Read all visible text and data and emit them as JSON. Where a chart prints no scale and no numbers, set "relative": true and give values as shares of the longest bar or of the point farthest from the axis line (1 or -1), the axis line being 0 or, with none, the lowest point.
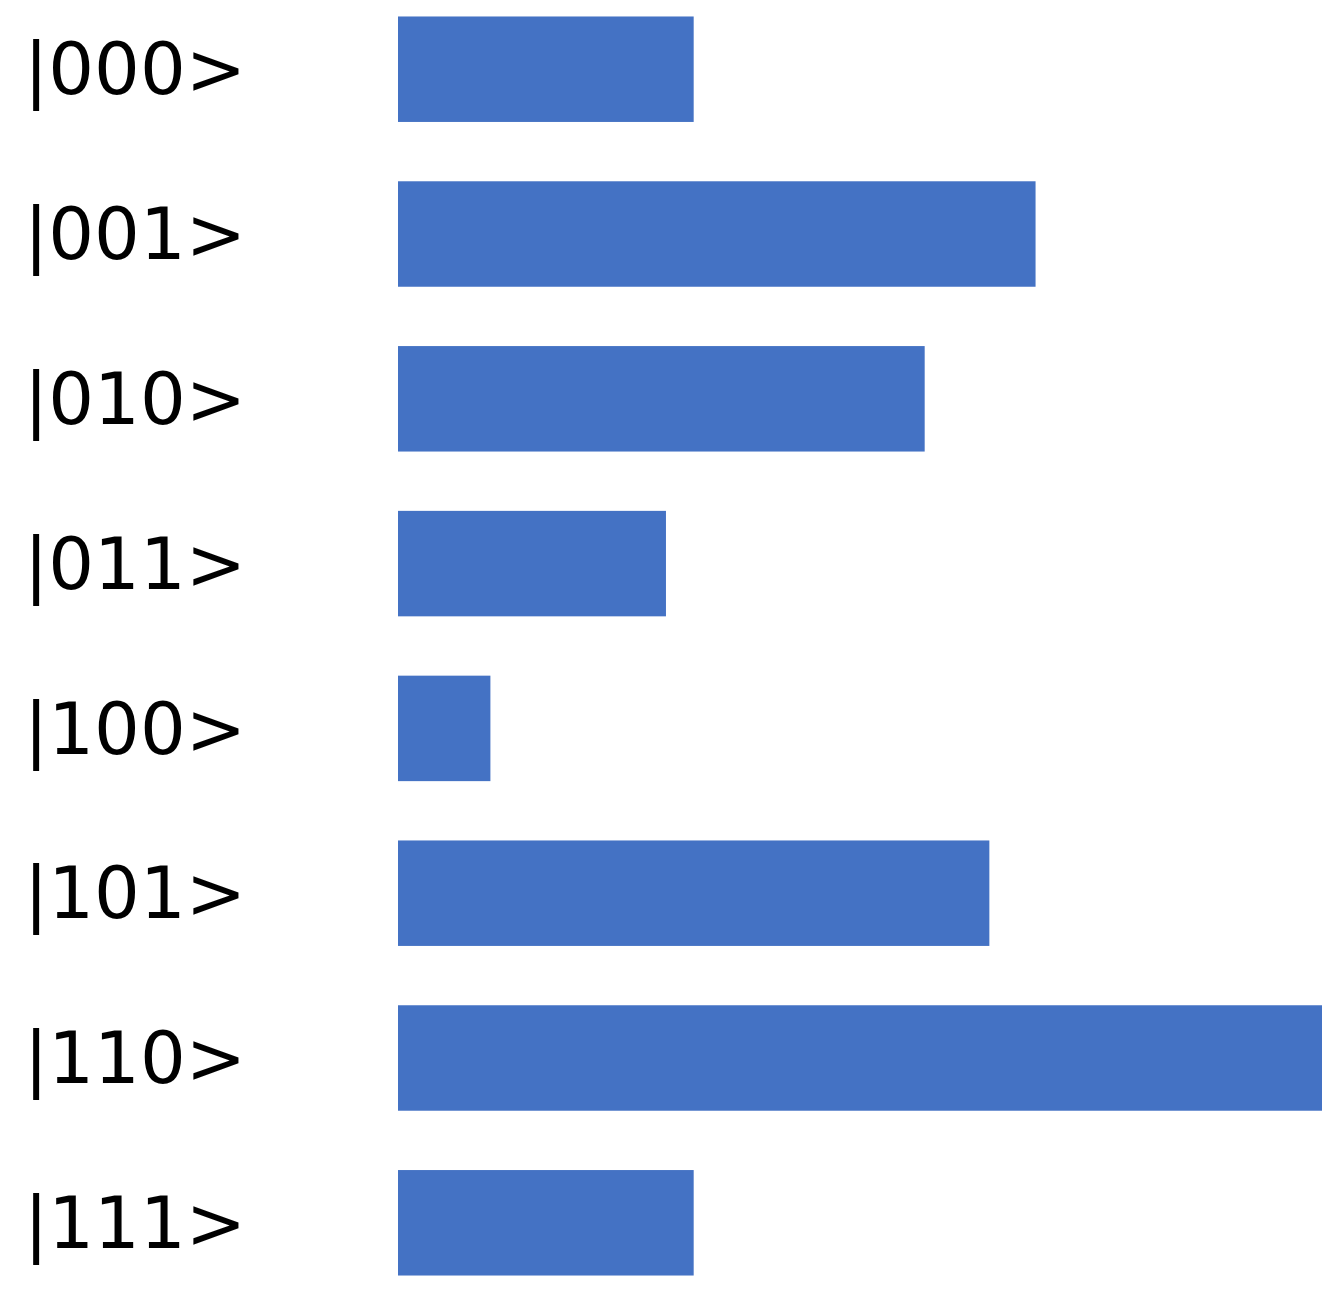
{
  "chart_data": {
    "type": "bar",
    "orientation": "horizontal",
    "relative": true,
    "categories": [
      "|000>",
      "|001>",
      "|010>",
      "|011>",
      "|100>",
      "|101>",
      "|110>",
      "|111>"
    ],
    "values": [
      0.32,
      0.69,
      0.57,
      0.29,
      0.1,
      0.64,
      1,
      0.32
    ],
    "color": "#4472c4"
  }
}
